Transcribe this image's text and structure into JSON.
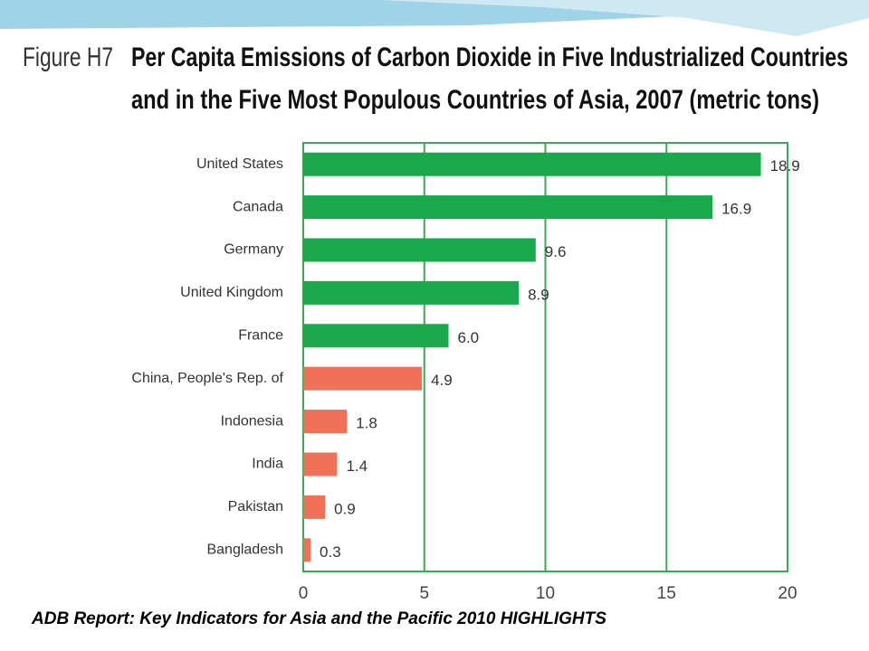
{
  "chart_data": {
    "type": "hbar",
    "figure_label": "Figure H7",
    "title_lines": [
      "Per Capita Emissions of Carbon Dioxide in Five Industrialized Countries",
      "and in the Five Most Populous Countries of Asia, 2007 (metric tons)"
    ],
    "categories": [
      "United States",
      "Canada",
      "Germany",
      "United Kingdom",
      "France",
      "China, People's Rep. of",
      "Indonesia",
      "India",
      "Pakistan",
      "Bangladesh"
    ],
    "values": [
      18.9,
      16.9,
      9.6,
      8.9,
      6.0,
      4.9,
      1.8,
      1.4,
      0.9,
      0.3
    ],
    "value_labels": [
      "18.9",
      "16.9",
      "9.6",
      "8.9",
      "6.0",
      "4.9",
      "1.8",
      "1.4",
      "0.9",
      "0.3"
    ],
    "colors": [
      "#1ba84c",
      "#1ba84c",
      "#1ba84c",
      "#1ba84c",
      "#1ba84c",
      "#f07058",
      "#f07058",
      "#f07058",
      "#f07058",
      "#f07058"
    ],
    "xlim": [
      0,
      20
    ],
    "xticks": [
      0,
      5,
      10,
      15,
      20
    ],
    "grid": true,
    "source": "ADB Report: Key Indicators for Asia and the Pacific 2010 HIGHLIGHTS"
  }
}
